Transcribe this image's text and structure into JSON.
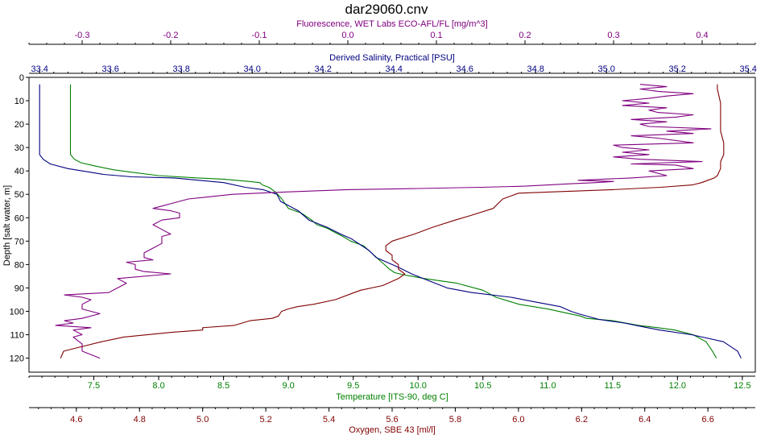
{
  "chart_data": {
    "type": "line",
    "title": "dar29060.cnv",
    "orientation": "profile-depth-down",
    "grid": false,
    "legend": "none",
    "y_axis": {
      "label": "Depth [salt water, m]",
      "range": [
        0,
        126
      ],
      "ticks": [
        0,
        10,
        20,
        30,
        40,
        50,
        60,
        70,
        80,
        90,
        100,
        110,
        120
      ],
      "inverted": true
    },
    "x_axes": [
      {
        "key": "fluorescence",
        "label": "Fluorescence, WET Labs ECO-AFL/FL [mg/m^3]",
        "position": "top-1",
        "color": "#800080",
        "range": [
          -0.36,
          0.46
        ],
        "ticks": [
          -0.3,
          -0.2,
          -0.1,
          0.0,
          0.1,
          0.2,
          0.3,
          0.4
        ],
        "tick_labels": [
          "-0.3",
          "-0.2",
          "-0.1",
          "0.0",
          "0.1",
          "0.2",
          "0.3",
          "0.4"
        ]
      },
      {
        "key": "salinity",
        "label": "Derived Salinity, Practical [PSU]",
        "position": "top-2",
        "color": "#000080",
        "range": [
          33.37,
          35.42
        ],
        "ticks": [
          33.4,
          33.6,
          33.8,
          34.0,
          34.2,
          34.4,
          34.6,
          34.8,
          35.0,
          35.2,
          35.4
        ],
        "tick_labels": [
          "33.4",
          "33.6",
          "33.8",
          "34.0",
          "34.2",
          "34.4",
          "34.6",
          "34.8",
          "35.0",
          "35.2",
          "35.4"
        ]
      },
      {
        "key": "temperature",
        "label": "Temperature [ITS-90, deg C]",
        "position": "bottom-1",
        "color": "#008000",
        "range": [
          7.0,
          12.6
        ],
        "ticks": [
          7.5,
          8.0,
          8.5,
          9.0,
          9.5,
          10.0,
          10.5,
          11.0,
          11.5,
          12.0,
          12.5
        ],
        "tick_labels": [
          "7.5",
          "8.0",
          "8.5",
          "9.0",
          "9.5",
          "10.0",
          "10.5",
          "11.0",
          "11.5",
          "12.0",
          "12.5"
        ]
      },
      {
        "key": "oxygen",
        "label": "Oxygen, SBE 43 [ml/l]",
        "position": "bottom-2",
        "color": "#800000",
        "range": [
          4.45,
          6.75
        ],
        "ticks": [
          4.6,
          4.8,
          5.0,
          5.2,
          5.4,
          5.6,
          5.8,
          6.0,
          6.2,
          6.4,
          6.6
        ],
        "tick_labels": [
          "4.6",
          "4.8",
          "5.0",
          "5.2",
          "5.4",
          "5.6",
          "5.8",
          "6.0",
          "6.2",
          "6.4",
          "6.6"
        ]
      }
    ],
    "series": [
      {
        "axis": "temperature",
        "color": "#008000",
        "points": [
          [
            12.3,
            120
          ],
          [
            12.27,
            117
          ],
          [
            12.22,
            113
          ],
          [
            12.12,
            110
          ],
          [
            11.98,
            108
          ],
          [
            11.85,
            107
          ],
          [
            11.7,
            106
          ],
          [
            11.5,
            104
          ],
          [
            11.3,
            103
          ],
          [
            11.25,
            102
          ],
          [
            11.0,
            99
          ],
          [
            10.78,
            97
          ],
          [
            10.6,
            94
          ],
          [
            10.5,
            91
          ],
          [
            10.3,
            88
          ],
          [
            10.05,
            86
          ],
          [
            9.9,
            84.5
          ],
          [
            9.82,
            83.5
          ],
          [
            9.78,
            82
          ],
          [
            9.72,
            79
          ],
          [
            9.68,
            77
          ],
          [
            9.62,
            74
          ],
          [
            9.58,
            72
          ],
          [
            9.48,
            70
          ],
          [
            9.42,
            68
          ],
          [
            9.35,
            66
          ],
          [
            9.3,
            64.5
          ],
          [
            9.22,
            63
          ],
          [
            9.18,
            61
          ],
          [
            9.1,
            58
          ],
          [
            9.05,
            57
          ],
          [
            9.0,
            56
          ],
          [
            8.95,
            52
          ],
          [
            8.9,
            49
          ],
          [
            8.85,
            47
          ],
          [
            8.8,
            46
          ],
          [
            8.78,
            45
          ],
          [
            8.7,
            44.5
          ],
          [
            8.5,
            43.5
          ],
          [
            8.3,
            43
          ],
          [
            8.0,
            42
          ],
          [
            7.78,
            40.5
          ],
          [
            7.65,
            39.5
          ],
          [
            7.52,
            38
          ],
          [
            7.4,
            36.5
          ],
          [
            7.35,
            35
          ],
          [
            7.32,
            33
          ],
          [
            7.32,
            25
          ],
          [
            7.32,
            15
          ],
          [
            7.32,
            3
          ]
        ]
      },
      {
        "axis": "salinity",
        "color": "#000080",
        "points": [
          [
            35.38,
            120
          ],
          [
            35.37,
            117
          ],
          [
            35.33,
            113
          ],
          [
            35.24,
            110
          ],
          [
            35.15,
            108
          ],
          [
            35.1,
            106.5
          ],
          [
            35.05,
            105
          ],
          [
            34.98,
            103.5
          ],
          [
            34.92,
            101
          ],
          [
            34.9,
            100
          ],
          [
            34.87,
            98
          ],
          [
            34.8,
            96
          ],
          [
            34.73,
            94
          ],
          [
            34.62,
            92
          ],
          [
            34.55,
            90
          ],
          [
            34.5,
            87
          ],
          [
            34.45,
            84
          ],
          [
            34.41,
            81
          ],
          [
            34.38,
            79
          ],
          [
            34.35,
            77
          ],
          [
            34.33,
            74
          ],
          [
            34.3,
            71
          ],
          [
            34.28,
            69
          ],
          [
            34.25,
            67
          ],
          [
            34.21,
            64
          ],
          [
            34.16,
            61
          ],
          [
            34.13,
            57
          ],
          [
            34.08,
            53
          ],
          [
            34.07,
            50
          ],
          [
            34.03,
            48
          ],
          [
            33.98,
            47
          ],
          [
            33.92,
            45
          ],
          [
            33.85,
            44
          ],
          [
            33.78,
            43
          ],
          [
            33.66,
            42.5
          ],
          [
            33.58,
            41.5
          ],
          [
            33.54,
            40.5
          ],
          [
            33.48,
            39
          ],
          [
            33.43,
            37
          ],
          [
            33.41,
            35
          ],
          [
            33.4,
            33
          ],
          [
            33.4,
            25
          ],
          [
            33.4,
            15
          ],
          [
            33.4,
            3
          ]
        ]
      },
      {
        "axis": "fluorescence",
        "color": "#800080",
        "points": [
          [
            -0.28,
            120
          ],
          [
            -0.3,
            117
          ],
          [
            -0.3,
            114
          ],
          [
            -0.31,
            111
          ],
          [
            -0.3,
            110
          ],
          [
            -0.31,
            108
          ],
          [
            -0.29,
            107
          ],
          [
            -0.33,
            106
          ],
          [
            -0.31,
            105
          ],
          [
            -0.32,
            104
          ],
          [
            -0.3,
            103
          ],
          [
            -0.28,
            101
          ],
          [
            -0.3,
            99
          ],
          [
            -0.3,
            97
          ],
          [
            -0.29,
            95
          ],
          [
            -0.3,
            94
          ],
          [
            -0.32,
            93
          ],
          [
            -0.27,
            92
          ],
          [
            -0.26,
            90
          ],
          [
            -0.25,
            88
          ],
          [
            -0.26,
            86
          ],
          [
            -0.2,
            84
          ],
          [
            -0.23,
            83
          ],
          [
            -0.24,
            82
          ],
          [
            -0.24,
            80
          ],
          [
            -0.25,
            79
          ],
          [
            -0.22,
            78
          ],
          [
            -0.23,
            77
          ],
          [
            -0.23,
            75
          ],
          [
            -0.22,
            73
          ],
          [
            -0.21,
            71
          ],
          [
            -0.21,
            68
          ],
          [
            -0.2,
            67
          ],
          [
            -0.21,
            65
          ],
          [
            -0.22,
            63
          ],
          [
            -0.21,
            61
          ],
          [
            -0.19,
            60
          ],
          [
            -0.19,
            58
          ],
          [
            -0.2,
            57
          ],
          [
            -0.22,
            56
          ],
          [
            -0.21,
            55
          ],
          [
            -0.2,
            54
          ],
          [
            -0.18,
            52
          ],
          [
            -0.13,
            50
          ],
          [
            -0.07,
            49
          ],
          [
            0.0,
            48
          ],
          [
            0.08,
            47.5
          ],
          [
            0.15,
            47
          ],
          [
            0.2,
            46.5
          ],
          [
            0.25,
            45.5
          ],
          [
            0.28,
            45
          ],
          [
            0.3,
            44.5
          ],
          [
            0.26,
            44
          ],
          [
            0.32,
            43
          ],
          [
            0.36,
            42
          ],
          [
            0.34,
            40
          ],
          [
            0.39,
            39
          ],
          [
            0.37,
            37.5
          ],
          [
            0.32,
            37
          ],
          [
            0.4,
            36
          ],
          [
            0.33,
            35
          ],
          [
            0.3,
            34
          ],
          [
            0.34,
            33
          ],
          [
            0.31,
            32
          ],
          [
            0.34,
            31
          ],
          [
            0.31,
            30
          ],
          [
            0.3,
            29
          ],
          [
            0.39,
            28
          ],
          [
            0.35,
            26
          ],
          [
            0.32,
            25
          ],
          [
            0.39,
            24
          ],
          [
            0.36,
            23
          ],
          [
            0.41,
            22
          ],
          [
            0.34,
            21
          ],
          [
            0.33,
            20
          ],
          [
            0.36,
            19
          ],
          [
            0.32,
            18
          ],
          [
            0.37,
            17
          ],
          [
            0.39,
            16
          ],
          [
            0.35,
            15
          ],
          [
            0.34,
            14
          ],
          [
            0.36,
            13
          ],
          [
            0.31,
            12
          ],
          [
            0.34,
            11
          ],
          [
            0.31,
            10
          ],
          [
            0.34,
            9
          ],
          [
            0.36,
            8
          ],
          [
            0.39,
            7
          ],
          [
            0.35,
            6
          ],
          [
            0.33,
            5
          ],
          [
            0.36,
            4
          ],
          [
            0.33,
            3
          ]
        ]
      },
      {
        "axis": "oxygen",
        "color": "#800000",
        "points": [
          [
            4.55,
            120
          ],
          [
            4.56,
            117
          ],
          [
            4.62,
            115
          ],
          [
            4.68,
            113
          ],
          [
            4.75,
            111
          ],
          [
            4.9,
            109
          ],
          [
            5.0,
            108
          ],
          [
            5.0,
            107
          ],
          [
            5.1,
            106
          ],
          [
            5.15,
            104
          ],
          [
            5.22,
            103
          ],
          [
            5.24,
            102
          ],
          [
            5.25,
            100
          ],
          [
            5.27,
            99
          ],
          [
            5.3,
            98
          ],
          [
            5.35,
            97
          ],
          [
            5.42,
            95
          ],
          [
            5.48,
            92
          ],
          [
            5.5,
            91
          ],
          [
            5.57,
            89
          ],
          [
            5.62,
            86
          ],
          [
            5.64,
            84
          ],
          [
            5.62,
            82
          ],
          [
            5.62,
            80
          ],
          [
            5.6,
            78
          ],
          [
            5.6,
            76
          ],
          [
            5.58,
            74
          ],
          [
            5.58,
            72
          ],
          [
            5.6,
            70
          ],
          [
            5.67,
            67
          ],
          [
            5.73,
            64
          ],
          [
            5.8,
            61
          ],
          [
            5.85,
            59
          ],
          [
            5.92,
            56
          ],
          [
            5.95,
            52
          ],
          [
            6.0,
            49.5
          ],
          [
            6.1,
            49
          ],
          [
            6.3,
            48
          ],
          [
            6.45,
            47
          ],
          [
            6.55,
            46
          ],
          [
            6.58,
            45
          ],
          [
            6.6,
            44
          ],
          [
            6.62,
            43
          ],
          [
            6.63,
            42
          ],
          [
            6.64,
            39
          ],
          [
            6.64,
            36
          ],
          [
            6.65,
            33
          ],
          [
            6.65,
            28
          ],
          [
            6.64,
            23
          ],
          [
            6.64,
            17
          ],
          [
            6.64,
            11
          ],
          [
            6.63,
            5
          ],
          [
            6.63,
            3
          ]
        ]
      }
    ]
  }
}
